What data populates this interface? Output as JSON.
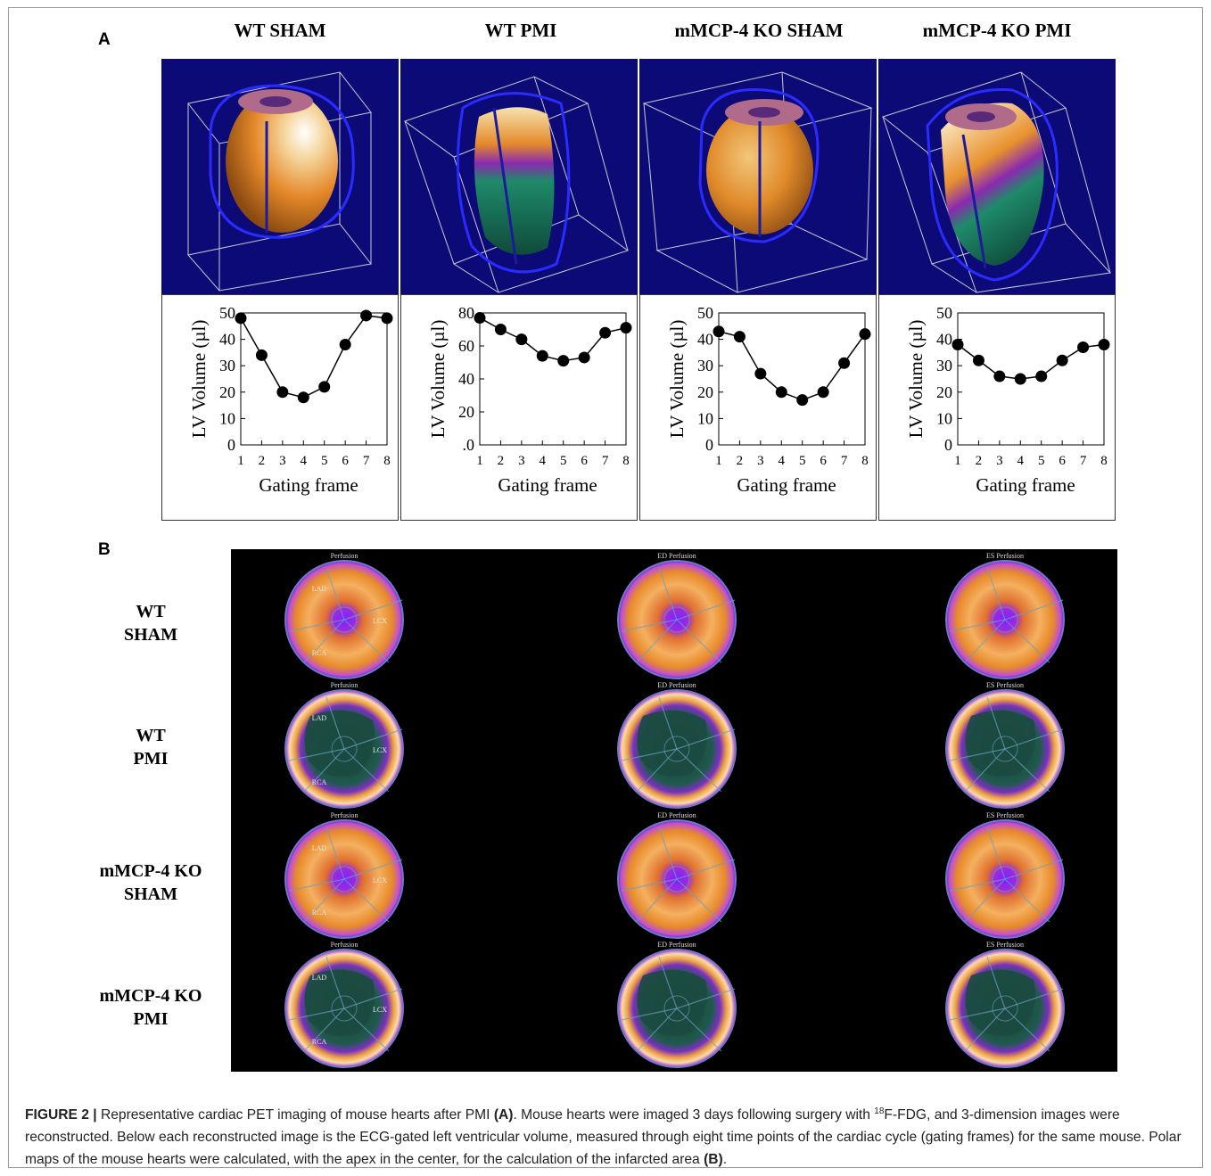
{
  "panel_a_label": "A",
  "panel_b_label": "B",
  "columns": [
    "WT SHAM",
    "WT PMI",
    "mMCP-4 KO SHAM",
    "mMCP-4 KO PMI"
  ],
  "chart_data": [
    {
      "type": "line",
      "title": "WT SHAM",
      "xlabel": "Gating frame",
      "ylabel": "LV Volume (µl)",
      "x": [
        1,
        2,
        3,
        4,
        5,
        6,
        7,
        8
      ],
      "y": [
        48,
        34,
        20,
        18,
        22,
        38,
        49,
        48
      ],
      "ylim": [
        0,
        50
      ],
      "yticks": [
        "0",
        "10",
        "20",
        "30",
        "40",
        "50"
      ],
      "xticks": [
        "1",
        "2",
        "3",
        "4",
        "5",
        "6",
        "7",
        "8"
      ]
    },
    {
      "type": "line",
      "title": "WT PMI",
      "xlabel": "Gating frame",
      "ylabel": "LV Volume (µl)",
      "x": [
        1,
        2,
        3,
        4,
        5,
        6,
        7,
        8
      ],
      "y": [
        77,
        70,
        64,
        54,
        51,
        53,
        68,
        71
      ],
      "ylim": [
        0,
        80
      ],
      "yticks": [
        ".0",
        "20",
        "40",
        "60",
        "80"
      ],
      "xticks": [
        "1",
        "2",
        "3",
        "4",
        "5",
        "6",
        "7",
        "8"
      ]
    },
    {
      "type": "line",
      "title": "mMCP-4 KO SHAM",
      "xlabel": "Gating frame",
      "ylabel": "LV Volume (µl)",
      "x": [
        1,
        2,
        3,
        4,
        5,
        6,
        7,
        8
      ],
      "y": [
        43,
        41,
        27,
        20,
        17,
        20,
        31,
        42
      ],
      "ylim": [
        0,
        50
      ],
      "yticks": [
        "0",
        "10",
        "20",
        "30",
        "40",
        "50"
      ],
      "xticks": [
        "1",
        "2",
        "3",
        "4",
        "5",
        "6",
        "7",
        "8"
      ]
    },
    {
      "type": "line",
      "title": "mMCP-4 KO PMI",
      "xlabel": "Gating frame",
      "ylabel": "LV Volume (µl)",
      "x": [
        1,
        2,
        3,
        4,
        5,
        6,
        7,
        8
      ],
      "y": [
        38,
        32,
        26,
        25,
        26,
        32,
        37,
        38
      ],
      "ylim": [
        0,
        50
      ],
      "yticks": [
        "0",
        "10",
        "20",
        "30",
        "40",
        "50"
      ],
      "xticks": [
        "1",
        "2",
        "3",
        "4",
        "5",
        "6",
        "7",
        "8"
      ]
    }
  ],
  "polar_maps": {
    "column_titles": [
      "Perfusion",
      "ED Perfusion",
      "ES Perfusion"
    ],
    "rows": [
      {
        "label_line1": "WT",
        "label_line2": "SHAM",
        "infarct": false,
        "segments": [
          "LAD",
          "LCX",
          "RCA"
        ]
      },
      {
        "label_line1": "WT",
        "label_line2": "PMI",
        "infarct": true,
        "segments": [
          "LAD",
          "LCX",
          "RCA"
        ]
      },
      {
        "label_line1": "mMCP-4 KO",
        "label_line2": "SHAM",
        "infarct": false,
        "segments": [
          "LAD",
          "LCX",
          "RCA"
        ]
      },
      {
        "label_line1": "mMCP-4 KO",
        "label_line2": "PMI",
        "infarct": true,
        "segments": [
          "LAD",
          "LCX",
          "RCA"
        ]
      }
    ]
  },
  "caption": {
    "label": "FIGURE 2 |",
    "part1": " Representative cardiac PET imaging of mouse hearts after PMI ",
    "ref_a": "(A)",
    "part2": ". Mouse hearts were imaged 3 days following surgery with ",
    "isotope_mass": "18",
    "part3": "F-FDG, and 3-dimension images were reconstructed. Below each reconstructed image is the ECG-gated left ventricular volume, measured through eight time points of the cardiac cycle (gating frames) for the same mouse. Polar maps of the mouse hearts were calculated, with the apex in the center, for the calculation of the infarcted area ",
    "ref_b": "(B)",
    "part4": "."
  },
  "colors": {
    "render_bg": "#0c0a77",
    "heart_orange": "#e6902e",
    "infarct_teal": "#1f7a63",
    "polar_bg": "#000000"
  }
}
